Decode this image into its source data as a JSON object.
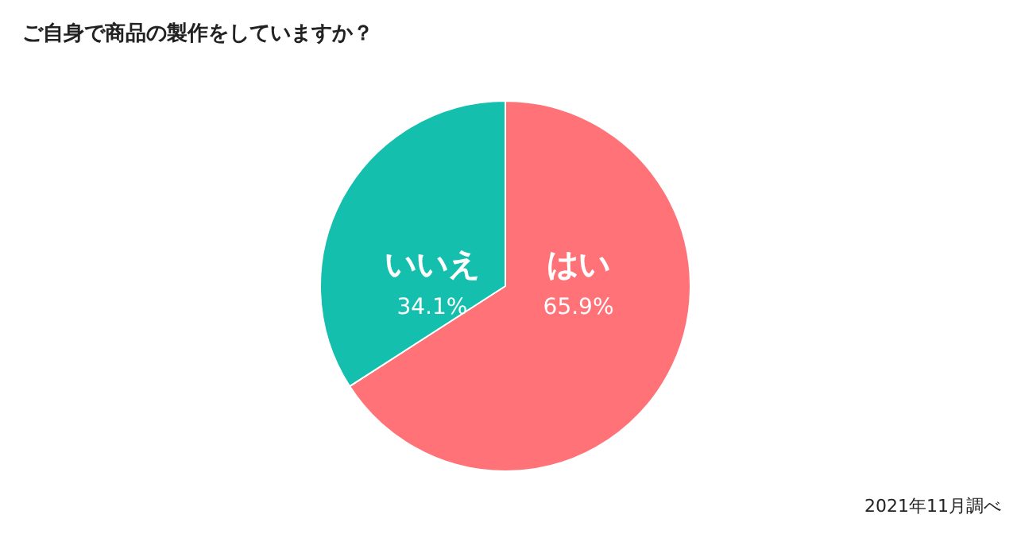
{
  "chart_data": {
    "type": "pie",
    "title": "ご自身で商品の製作をしていますか？",
    "categories": [
      "はい",
      "いいえ"
    ],
    "values": [
      65.9,
      34.1
    ],
    "value_labels": [
      "65.9%",
      "34.1%"
    ],
    "colors": [
      "#ff7378",
      "#14bfae"
    ],
    "annotations": [
      "2021年11月調べ"
    ]
  }
}
